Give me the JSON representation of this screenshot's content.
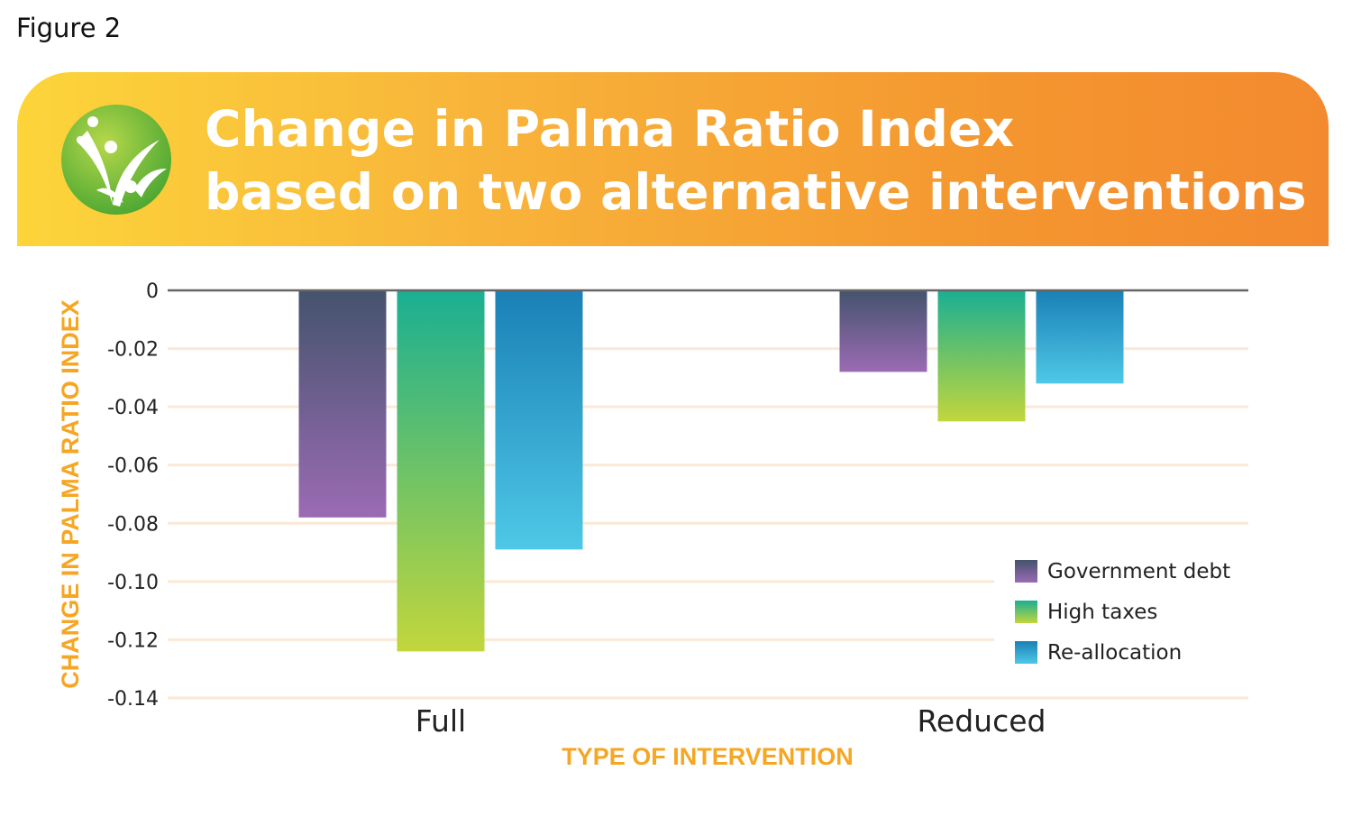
{
  "figure_label": "Figure 2",
  "banner": {
    "line1": "Change in Palma Ratio Index",
    "line2": "based on two alternative interventions",
    "logo_icon": "sprouting-figures-logo-icon"
  },
  "chart_data": {
    "type": "bar",
    "title": "Change in Palma Ratio Index based on two alternative interventions",
    "xlabel": "TYPE OF INTERVENTION",
    "ylabel": "CHANGE IN PALMA RATIO INDEX",
    "categories": [
      "Full",
      "Reduced"
    ],
    "series": [
      {
        "name": "Government debt",
        "values": [
          -0.078,
          -0.028
        ],
        "color_top": "#44536d",
        "color_bottom": "#9b6bb4"
      },
      {
        "name": "High taxes",
        "values": [
          -0.124,
          -0.045
        ],
        "color_top": "#1aaf92",
        "color_bottom": "#c2d63c"
      },
      {
        "name": "Re-allocation",
        "values": [
          -0.089,
          -0.032
        ],
        "color_top": "#1a80b6",
        "color_bottom": "#4ec8e6"
      }
    ],
    "ylim": [
      -0.14,
      0
    ],
    "yticks": [
      0,
      -0.02,
      -0.04,
      -0.06,
      -0.08,
      -0.1,
      -0.12,
      -0.14
    ],
    "ytick_labels": [
      "0",
      "-0.02",
      "-0.04",
      "-0.06",
      "-0.08",
      "-0.10",
      "-0.12",
      "-0.14"
    ],
    "grid": true,
    "legend_position": "bottom-right"
  }
}
